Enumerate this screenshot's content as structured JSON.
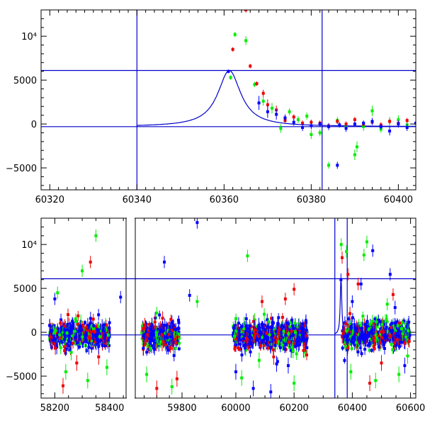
{
  "chart_data": [
    {
      "type": "scatter",
      "panel": "top",
      "xlim": [
        60318,
        60404
      ],
      "ylim": [
        -7500,
        13000
      ],
      "xticks": [
        60320,
        60340,
        60360,
        60380,
        60400
      ],
      "xticklabels": [
        "60320",
        "60340",
        "60360",
        "60380",
        "60400"
      ],
      "yticks": [
        -5000,
        0,
        5000,
        10000
      ],
      "yticklabels": [
        "−5000",
        "0",
        "5000",
        "10⁴"
      ],
      "baseline": -300,
      "peak_level": 6100,
      "vlines": [
        60340,
        60382.5
      ],
      "model": {
        "t0": 60361.2,
        "peak": 6100,
        "width": 3.2,
        "t_start": 60340,
        "t_end": 60404
      },
      "colors": {
        "green": "#00ee00",
        "red": "#ee0000",
        "blue": "#0000ff"
      },
      "series": [
        {
          "color": "green",
          "points": [
            [
              60361.5,
              5300,
              250
            ],
            [
              60362.5,
              10200,
              300
            ],
            [
              60365,
              9500,
              500
            ],
            [
              60367,
              4500,
              300
            ],
            [
              60369,
              2600,
              500
            ],
            [
              60371,
              1800,
              600
            ],
            [
              60373,
              -500,
              500
            ],
            [
              60375,
              1400,
              400
            ],
            [
              60377,
              500,
              400
            ],
            [
              60379,
              900,
              400
            ],
            [
              60380,
              -1200,
              500
            ],
            [
              60382,
              -1000,
              400
            ],
            [
              60384,
              -4700,
              400
            ],
            [
              60386,
              400,
              400
            ],
            [
              60388,
              -200,
              400
            ],
            [
              60390,
              -3500,
              600
            ],
            [
              60390.5,
              -2600,
              600
            ],
            [
              60392,
              -300,
              500
            ],
            [
              60394,
              1500,
              600
            ],
            [
              60396,
              -600,
              400
            ],
            [
              60398,
              300,
              500
            ],
            [
              60400,
              500,
              500
            ],
            [
              60402,
              -100,
              400
            ]
          ]
        },
        {
          "color": "red",
          "points": [
            [
              60362,
              8500,
              250
            ],
            [
              60365,
              13000,
              300
            ],
            [
              60366,
              6600,
              250
            ],
            [
              60367.5,
              4600,
              250
            ],
            [
              60369,
              3500,
              400
            ],
            [
              60370,
              2200,
              600
            ],
            [
              60372,
              1600,
              500
            ],
            [
              60374,
              400,
              300
            ],
            [
              60376,
              800,
              300
            ],
            [
              60378,
              100,
              300
            ],
            [
              60380,
              200,
              300
            ],
            [
              60382,
              100,
              300
            ],
            [
              60384,
              -200,
              300
            ],
            [
              60386,
              300,
              300
            ],
            [
              60388,
              0,
              300
            ],
            [
              60390,
              500,
              300
            ],
            [
              60392,
              0,
              300
            ],
            [
              60394,
              200,
              300
            ],
            [
              60396,
              -100,
              300
            ],
            [
              60398,
              300,
              300
            ],
            [
              60400,
              100,
              300
            ],
            [
              60402,
              400,
              300
            ]
          ]
        },
        {
          "color": "blue",
          "points": [
            [
              60361,
              6000,
              200
            ],
            [
              60368,
              2400,
              800
            ],
            [
              60370,
              1400,
              700
            ],
            [
              60372,
              1100,
              600
            ],
            [
              60374,
              700,
              400
            ],
            [
              60376,
              200,
              400
            ],
            [
              60378,
              -400,
              400
            ],
            [
              60380,
              -200,
              400
            ],
            [
              60382,
              0,
              300
            ],
            [
              60384,
              -300,
              400
            ],
            [
              60386,
              -4700,
              400
            ],
            [
              60386.5,
              -100,
              300
            ],
            [
              60388,
              -500,
              400
            ],
            [
              60390,
              0,
              300
            ],
            [
              60392,
              100,
              300
            ],
            [
              60394,
              300,
              400
            ],
            [
              60396,
              -300,
              300
            ],
            [
              60398,
              -800,
              500
            ],
            [
              60400,
              0,
              400
            ],
            [
              60402,
              -400,
              400
            ],
            [
              60404,
              100,
              300
            ]
          ]
        }
      ]
    },
    {
      "type": "scatter",
      "panel": "bottom",
      "ylim": [
        -7500,
        13000
      ],
      "yticks": [
        -5000,
        0,
        5000,
        10000
      ],
      "yticklabels": [
        "−5000",
        "0",
        "5000",
        "10⁴"
      ],
      "segments": [
        {
          "xlim": [
            58150,
            58460
          ],
          "xticks": [
            58200,
            58400
          ],
          "xticklabels": [
            "58200",
            "58400"
          ],
          "obs": [
            [
              58180,
              58400
            ]
          ]
        },
        {
          "xlim": [
            59615,
            59915
          ],
          "xticks": [
            59800
          ],
          "xticklabels": [
            "59800"
          ],
          "obs": [
            [
              59640,
              59790
            ]
          ]
        },
        {
          "xlim": [
            59915,
            60618
          ],
          "xticks": [
            60000,
            60200,
            60400,
            60600
          ],
          "xticklabels": [
            "60000",
            "60200",
            "60400",
            "60600"
          ],
          "obs": [
            [
              59990,
              60245
            ],
            [
              60365,
              60598
            ]
          ]
        }
      ],
      "baseline": -300,
      "peak_level": 6100,
      "vlines": [
        60340,
        60382.5
      ],
      "model": {
        "t0": 60361.2,
        "peak": 6100,
        "width": 3.2
      },
      "noise_sigma": 700,
      "colors": {
        "green": "#00ee00",
        "red": "#ee0000",
        "blue": "#0000ff"
      },
      "outliers": [
        {
          "color": "green",
          "points": [
            [
              58210,
              4500
            ],
            [
              58240,
              -4500
            ],
            [
              58300,
              7000
            ],
            [
              58320,
              -5500
            ],
            [
              58350,
              11000
            ],
            [
              58390,
              -4000
            ],
            [
              58260,
              -2300
            ],
            [
              59660,
              -4800
            ],
            [
              59700,
              2200
            ],
            [
              59760,
              -6200
            ],
            [
              59860,
              3500
            ],
            [
              60040,
              8700
            ],
            [
              60020,
              -5200
            ],
            [
              60080,
              -3200
            ],
            [
              60200,
              -5800
            ],
            [
              60362,
              10000
            ],
            [
              60380,
              9200
            ],
            [
              60395,
              -4500
            ],
            [
              60440,
              8800
            ],
            [
              60450,
              10300
            ],
            [
              60480,
              -5500
            ],
            [
              60560,
              -4800
            ],
            [
              60520,
              3200
            ],
            [
              60590,
              -2700
            ]
          ]
        },
        {
          "color": "red",
          "points": [
            [
              58230,
              -6100
            ],
            [
              58280,
              -3500
            ],
            [
              58330,
              8000
            ],
            [
              58360,
              -2800
            ],
            [
              59700,
              -6400
            ],
            [
              59780,
              -5300
            ],
            [
              60090,
              3500
            ],
            [
              60130,
              -2800
            ],
            [
              60170,
              3800
            ],
            [
              60200,
              4900
            ],
            [
              60365,
              8500
            ],
            [
              60385,
              6600
            ],
            [
              60420,
              5500
            ],
            [
              60460,
              -5800
            ],
            [
              60500,
              -3500
            ],
            [
              60540,
              4300
            ]
          ]
        },
        {
          "color": "blue",
          "points": [
            [
              58200,
              3800
            ],
            [
              58360,
              -1600
            ],
            [
              58440,
              4000
            ],
            [
              59730,
              8000
            ],
            [
              59860,
              12500
            ],
            [
              59830,
              4200
            ],
            [
              60000,
              -4500
            ],
            [
              60060,
              -6400
            ],
            [
              60120,
              -6800
            ],
            [
              60140,
              -3600
            ],
            [
              60180,
              -3800
            ],
            [
              60361,
              6000
            ],
            [
              60400,
              3500
            ],
            [
              60430,
              5500
            ],
            [
              60470,
              9300
            ],
            [
              60530,
              6600
            ],
            [
              60580,
              -3800
            ]
          ]
        }
      ]
    }
  ]
}
